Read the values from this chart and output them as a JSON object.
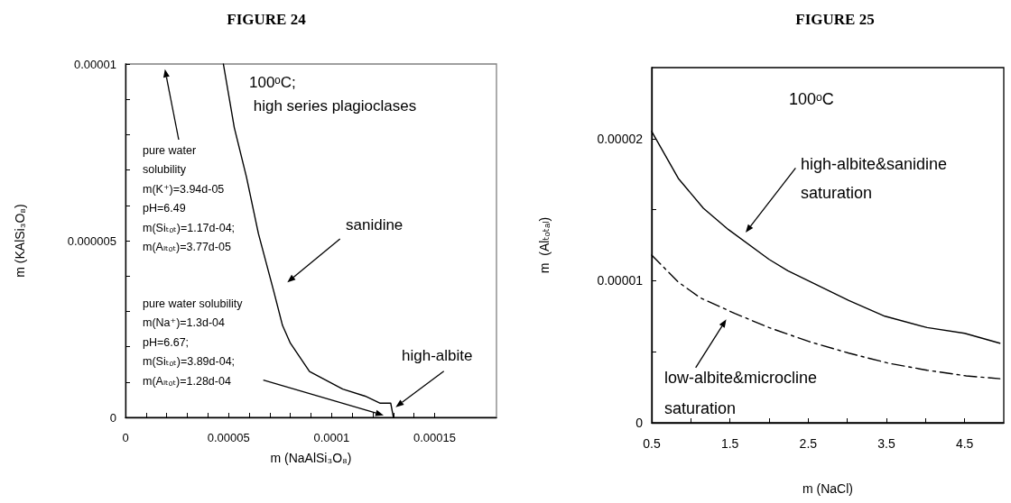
{
  "chart_data": [
    {
      "type": "line",
      "title": "FIGURE 24",
      "xlabel": "m (NaAlSi₃O₈)",
      "ylabel": "m (KAlSi₃O₈)",
      "series": [
        {
          "color": "#000000",
          "line_style": "solid",
          "x": [
            4.75e-05,
            5.28e-05,
            5.87e-05,
            6.45e-05,
            7.18e-05,
            7.62e-05,
            8e-05,
            8.93e-05,
            0.0001054,
            0.0001163,
            0.0001236,
            0.0001287,
            0.00013
          ],
          "values": [
            1e-05,
            8.2e-06,
            6.8e-06,
            5.2e-06,
            3.6e-06,
            2.6e-06,
            2.1e-06,
            1.3e-06,
            8e-07,
            6e-07,
            4e-07,
            4e-07,
            0
          ]
        }
      ],
      "xlim": [
        0,
        0.00018
      ],
      "xticks": [
        0,
        {
          "value": 5e-05,
          "label": "0.00005"
        },
        {
          "value": 0.0001,
          "label": "0.0001"
        },
        {
          "value": 0.00015,
          "label": "0.00015"
        }
      ],
      "ylim": [
        0,
        1e-05
      ],
      "yticks": [
        0,
        {
          "value": 5e-06,
          "label": "0.000005"
        },
        {
          "value": 1e-05,
          "label": "0.00001"
        }
      ],
      "grid": false,
      "marker": "none",
      "annotations": [
        "100ᵒC;\n high series plagioclases",
        "pure water\nsolubility\nm(K⁺)=3.94d-05\npH=6.49\nm(Siₜₒₜ)=1.17d-04;\nm(Aₗₜₒₜ)=3.77d-05",
        "pure water solubility\nm(Na⁺)=1.3d-04\npH=6.67;\nm(Siₜₒₜ)=3.89d-04;\nm(Aₗₜₒₜ)=1.28d-04",
        "sanidine",
        "high-albite"
      ]
    },
    {
      "type": "line",
      "title": "FIGURE 25",
      "xlabel": "m (NaCl)",
      "ylabel": "m  (Alₜₒₜₐₗ)",
      "series": [
        {
          "color": "#000000",
          "line_style": "solid",
          "x": [
            0.5,
            0.84,
            1.16,
            1.48,
            2.0,
            2.24,
            3.02,
            3.48,
            4.02,
            4.5,
            4.95
          ],
          "values": [
            2.05e-05,
            1.72e-05,
            1.51e-05,
            1.36e-05,
            1.15e-05,
            1.07e-05,
            8.6e-06,
            7.5e-06,
            6.7e-06,
            6.3e-06,
            5.6e-06
          ]
        },
        {
          "color": "#000000",
          "line_style": "dashed",
          "x": [
            0.5,
            0.84,
            1.12,
            1.56,
            2.0,
            2.52,
            3.02,
            3.52,
            4.02,
            4.52,
            4.95
          ],
          "values": [
            1.18e-05,
            9.9e-06,
            8.8e-06,
            7.7e-06,
            6.7e-06,
            5.7e-06,
            4.9e-06,
            4.2e-06,
            3.7e-06,
            3.3e-06,
            3.1e-06
          ]
        }
      ],
      "xlim": [
        0.5,
        5
      ],
      "xticks": [
        0.5,
        1.5,
        2.5,
        3.5,
        4.5
      ],
      "ylim": [
        0,
        2.5e-05
      ],
      "yticks": [
        0,
        {
          "value": 1e-05,
          "label": "0.00001"
        },
        {
          "value": 2e-05,
          "label": "0.00002"
        }
      ],
      "grid": false,
      "marker": "none",
      "annotations": [
        "100ᵒC",
        "high-albite&sanidine\nsaturation",
        "low-albite&microcline\nsaturation"
      ]
    }
  ]
}
